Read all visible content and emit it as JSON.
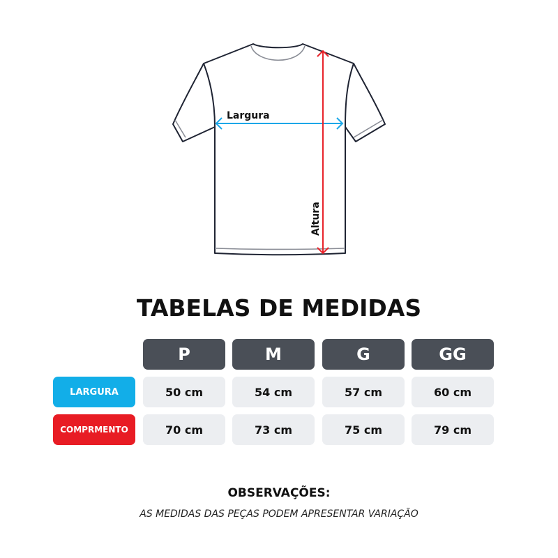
{
  "diagram": {
    "width_label": "Largura",
    "height_label": "Altura"
  },
  "colors": {
    "width_arrow": "#1aa7e8",
    "height_arrow": "#e8232a",
    "header": "#4a4f57",
    "cell": "#eceef1",
    "largura_badge": "#12aee8",
    "comprimento_badge": "#e81c24"
  },
  "title": "TABELAS DE MEDIDAS",
  "table": {
    "sizes": [
      "P",
      "M",
      "G",
      "GG"
    ],
    "rows": [
      {
        "label": "LARGURA",
        "values": [
          "50 cm",
          "54 cm",
          "57 cm",
          "60 cm"
        ]
      },
      {
        "label": "COMPRMENTO",
        "values": [
          "70 cm",
          "73 cm",
          "75 cm",
          "79 cm"
        ]
      }
    ]
  },
  "notes": {
    "heading": "OBSERVAÇÕES:",
    "text": "AS MEDIDAS DAS PEÇAS PODEM APRESENTAR VARIAÇÃO"
  }
}
